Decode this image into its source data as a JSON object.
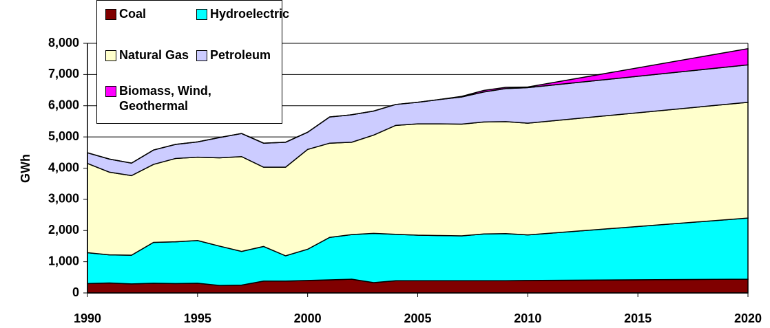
{
  "chart_data": {
    "type": "stacked_area",
    "y_label": "GWh",
    "x": [
      1990,
      1991,
      1992,
      1993,
      1994,
      1995,
      1996,
      1997,
      1998,
      1999,
      2000,
      2001,
      2002,
      2003,
      2004,
      2005,
      2006,
      2007,
      2008,
      2009,
      2010,
      2020
    ],
    "xlim": [
      1990,
      2020
    ],
    "xticks": [
      1990,
      1995,
      2000,
      2005,
      2010,
      2015,
      2020
    ],
    "ylim": [
      0,
      8000
    ],
    "yticks": [
      0,
      {
        "value": 1000,
        "label": "1,000"
      },
      {
        "value": 2000,
        "label": "2,000"
      },
      {
        "value": 3000,
        "label": "3,000"
      },
      {
        "value": 4000,
        "label": "4,000"
      },
      {
        "value": 5000,
        "label": "5,000"
      },
      {
        "value": 6000,
        "label": "6,000"
      },
      {
        "value": 7000,
        "label": "7,000"
      },
      {
        "value": 8000,
        "label": "8,000"
      }
    ],
    "grid": true,
    "series": [
      {
        "name": "Coal",
        "color": "#800000",
        "values": [
          300,
          320,
          290,
          310,
          300,
          310,
          240,
          250,
          380,
          380,
          400,
          420,
          440,
          330,
          390,
          390,
          390,
          390,
          390,
          390,
          400,
          440
        ]
      },
      {
        "name": "Hydroelectric",
        "color": "#00ffff",
        "values": [
          990,
          900,
          920,
          1310,
          1340,
          1370,
          1260,
          1080,
          1110,
          810,
          1000,
          1360,
          1430,
          1580,
          1490,
          1460,
          1450,
          1440,
          1500,
          1510,
          1460,
          1960
        ]
      },
      {
        "name": "Natural Gas",
        "color": "#ffffcc",
        "values": [
          2860,
          2650,
          2550,
          2500,
          2670,
          2670,
          2830,
          3040,
          2540,
          2840,
          3200,
          3020,
          2960,
          3150,
          3490,
          3570,
          3580,
          3580,
          3590,
          3590,
          3580,
          3710
        ]
      },
      {
        "name": "Petroleum",
        "color": "#ccccff",
        "values": [
          340,
          420,
          400,
          460,
          450,
          490,
          650,
          740,
          770,
          800,
          550,
          840,
          880,
          770,
          670,
          690,
          780,
          870,
          960,
          1060,
          1140,
          1200
        ]
      },
      {
        "name": "Biomass, Wind, Geothermal",
        "color": "#ff00ff",
        "values": [
          0,
          0,
          0,
          0,
          0,
          0,
          0,
          0,
          0,
          0,
          0,
          0,
          0,
          0,
          0,
          0,
          0,
          20,
          50,
          40,
          20,
          520
        ]
      }
    ]
  }
}
